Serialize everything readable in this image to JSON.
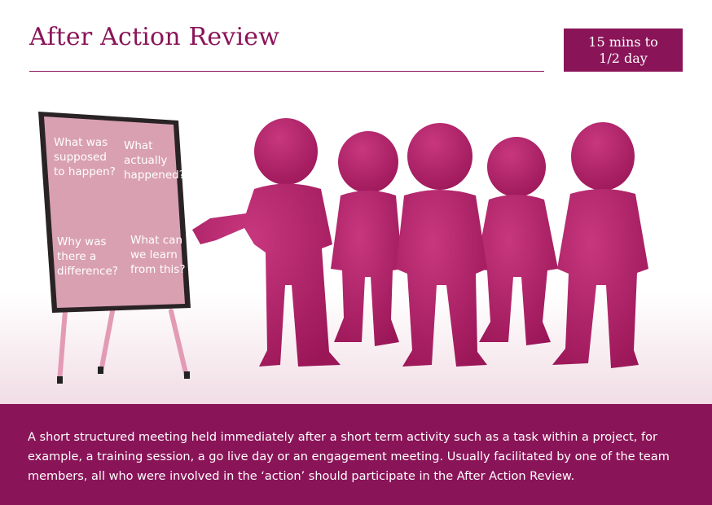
{
  "header": {
    "title": "After Action Review",
    "duration_line1": "15 mins to",
    "duration_line2": "1/2 day"
  },
  "flipchart": {
    "q1": "What was\nsupposed\nto happen?",
    "q2": "What\nactually\nhappened?",
    "q3": "Why was\nthere a\ndifference?",
    "q4": "What can\nwe learn\nfrom this?"
  },
  "description": "A short structured meeting held immediately after a short term activity such  as a task within a project, for example, a training session, a go live day or an engagement meeting. Usually facilitated by one of the team members, all who were involved in the ‘action’ should participate in the After Action Review.",
  "colors": {
    "brand": "#8a1458",
    "figure": "#b01e68",
    "board": "#d9a0b2",
    "legs": "#e39bb5"
  },
  "icons": [
    "flipchart-icon",
    "people-figures-icon"
  ]
}
